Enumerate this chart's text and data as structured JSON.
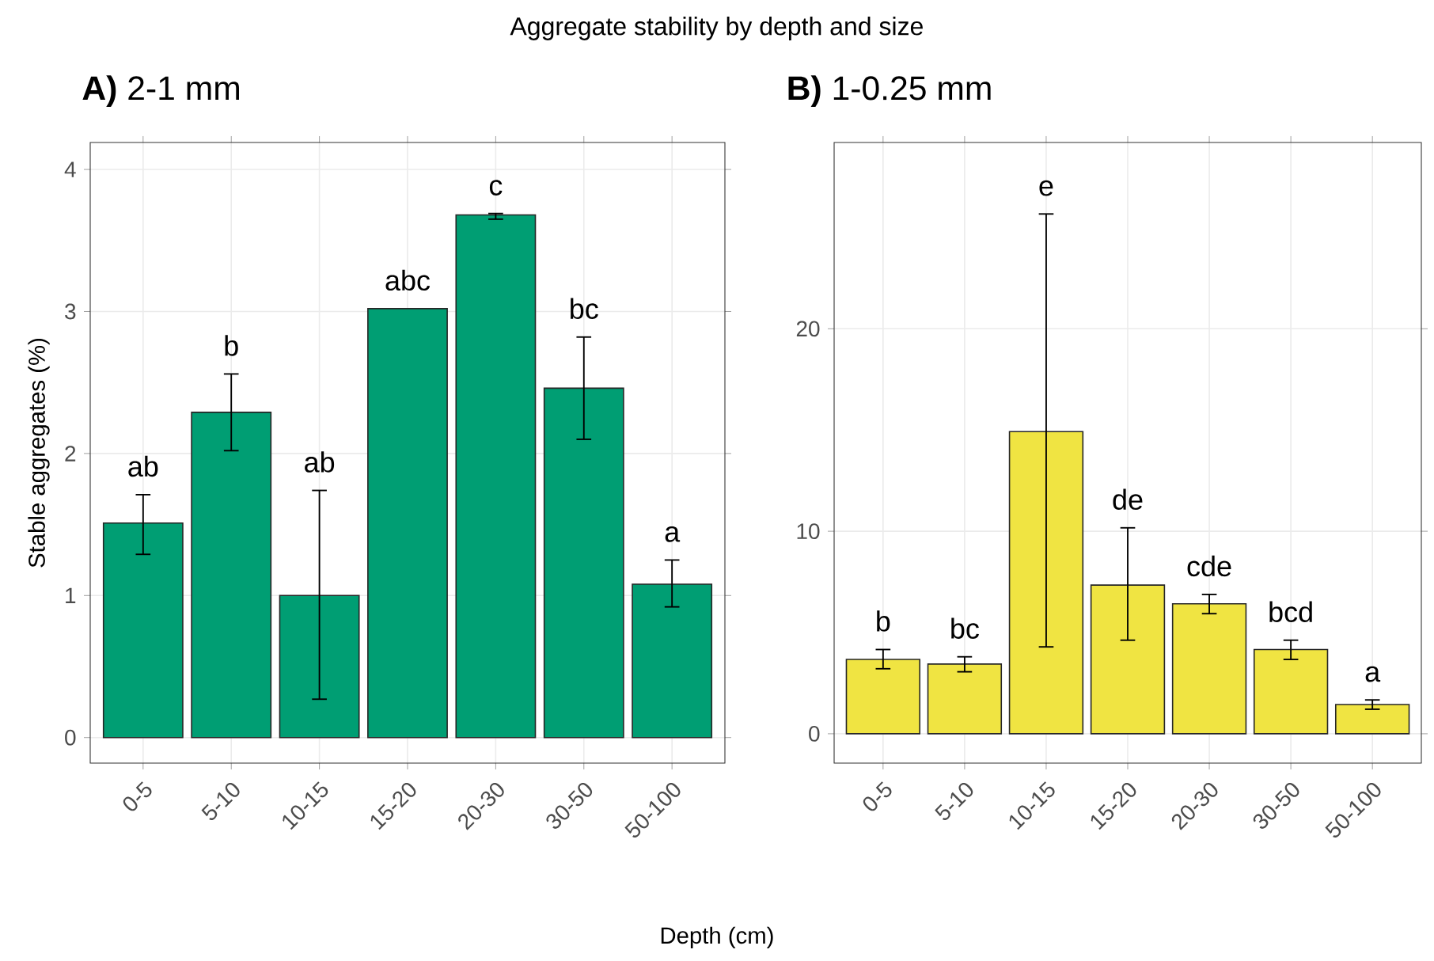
{
  "chart_data": [
    {
      "type": "bar",
      "title": "**A)** 2-1 mm",
      "xlabel": "Depth (cm)",
      "ylabel": "Stable aggregates (%)",
      "categories": [
        "0-5",
        "5-10",
        "10-15",
        "15-20",
        "20-30",
        "30-50",
        "50-100"
      ],
      "values": [
        1.51,
        2.29,
        1.0,
        3.02,
        3.68,
        2.46,
        1.08
      ],
      "errors": [
        [
          1.29,
          1.71
        ],
        [
          2.02,
          2.56
        ],
        [
          0.27,
          1.74
        ],
        null,
        [
          3.65,
          3.69
        ],
        [
          2.1,
          2.82
        ],
        [
          0.92,
          1.25
        ]
      ],
      "color": "#009e73",
      "ylim": [
        -0.18,
        4.19
      ],
      "yticks": [
        0,
        1,
        2,
        3,
        4
      ],
      "grid": true,
      "annotations": [
        "ab",
        "b",
        "ab",
        "abc",
        "c",
        "bc",
        "a",
        "Aggregate stability by depth and size"
      ]
    },
    {
      "type": "bar",
      "title": "**B)** 1-0.25 mm",
      "categories": [
        "0-5",
        "5-10",
        "10-15",
        "15-20",
        "20-30",
        "30-50",
        "50-100"
      ],
      "values": [
        3.67,
        3.44,
        14.92,
        7.34,
        6.42,
        4.16,
        1.44
      ],
      "errors": [
        [
          3.21,
          4.16
        ],
        [
          3.06,
          3.8
        ],
        [
          4.29,
          25.67
        ],
        [
          4.62,
          10.17
        ],
        [
          5.93,
          6.88
        ],
        [
          3.67,
          4.62
        ],
        [
          1.21,
          1.67
        ]
      ],
      "color": "#f0e442",
      "ylim": [
        -1.45,
        29.2
      ],
      "yticks": [
        0,
        10,
        20
      ],
      "grid": true,
      "annotations": [
        "b",
        "bc",
        "e",
        "de",
        "cde",
        "bcd",
        "a"
      ]
    }
  ]
}
